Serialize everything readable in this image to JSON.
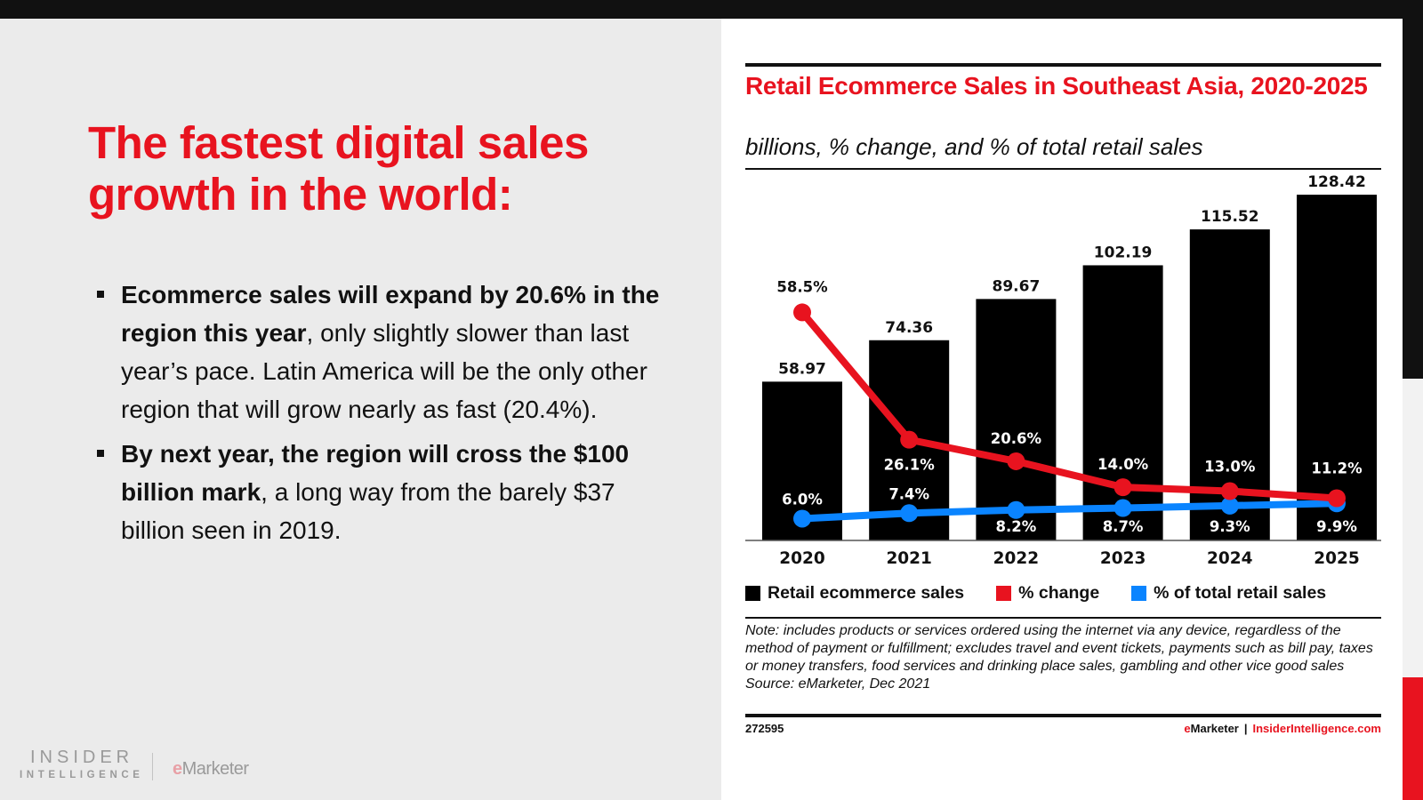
{
  "slide": {
    "headline": "The fastest digital sales growth in the world:",
    "bullets": [
      {
        "bold": "Ecommerce sales will expand by 20.6% in the region this year",
        "rest": ", only slightly slower than last year’s pace. Latin America will be the only other region that will grow nearly as fast (20.4%)."
      },
      {
        "bold": "By next year, the region will cross the $100 billion mark",
        "rest": ", a long way from the barely $37 billion seen in 2019."
      }
    ],
    "logo": {
      "insider": "INSIDER",
      "intelligence": "INTELLIGENCE",
      "emarketer_e": "e",
      "emarketer_rest": "Marketer"
    }
  },
  "colors": {
    "accent_red": "#e8131f",
    "blue": "#0a84ff",
    "bar": "#000000"
  },
  "chart_data": {
    "type": "bar",
    "title": "Retail Ecommerce Sales in Southeast Asia, 2020-2025",
    "subtitle": "billions, % change, and % of total retail sales",
    "categories": [
      "2020",
      "2021",
      "2022",
      "2023",
      "2024",
      "2025"
    ],
    "series": [
      {
        "name": "Retail ecommerce sales",
        "type": "bar",
        "color": "#000000",
        "values": [
          58.97,
          74.36,
          89.67,
          102.19,
          115.52,
          128.42
        ],
        "labels": [
          "58.97",
          "74.36",
          "89.67",
          "102.19",
          "115.52",
          "128.42"
        ]
      },
      {
        "name": "% change",
        "type": "line",
        "color": "#e8131f",
        "values": [
          58.5,
          26.1,
          20.6,
          14.0,
          13.0,
          11.2
        ],
        "labels": [
          "58.5%",
          "26.1%",
          "20.6%",
          "14.0%",
          "13.0%",
          "11.2%"
        ]
      },
      {
        "name": "% of total retail sales",
        "type": "line",
        "color": "#0a84ff",
        "values": [
          6.0,
          7.4,
          8.2,
          8.7,
          9.3,
          9.9
        ],
        "labels": [
          "6.0%",
          "7.4%",
          "8.2%",
          "8.7%",
          "9.3%",
          "9.9%"
        ]
      }
    ],
    "xlabel": "",
    "ylabel": "",
    "ylim": [
      0,
      128.42
    ],
    "grid": false,
    "legend_position": "bottom",
    "note": "Note: includes products or services ordered using the internet via any device, regardless of the method of payment or fulfillment; excludes travel and event tickets, payments such as bill pay, taxes or money transfers, food services and drinking place sales, gambling and other vice good sales",
    "source": "Source: eMarketer, Dec 2021",
    "chart_id": "272595",
    "brand_e": "e",
    "brand_marketer": "Marketer",
    "brand_sep": "|",
    "brand_site": "InsiderIntelligence.com"
  }
}
